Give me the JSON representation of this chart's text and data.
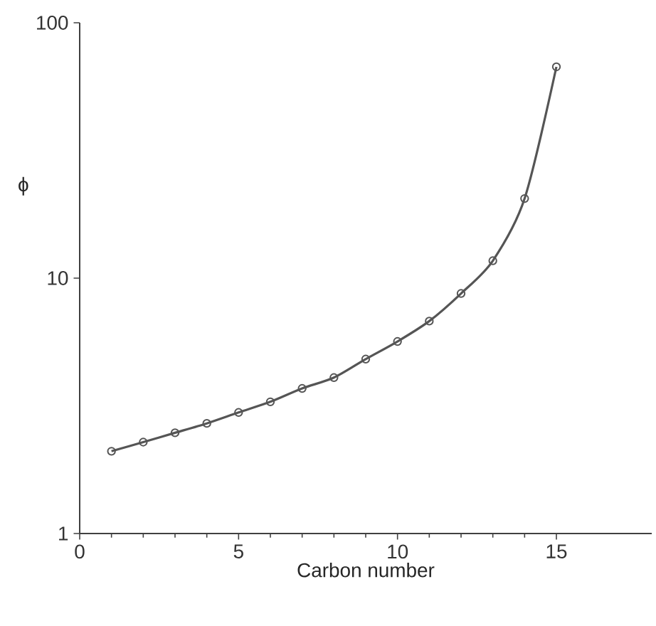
{
  "chart_data": {
    "type": "line",
    "xlabel": "Carbon number",
    "ylabel": "ϕ",
    "x": [
      1,
      2,
      3,
      4,
      5,
      6,
      7,
      8,
      9,
      10,
      11,
      12,
      13,
      14,
      15
    ],
    "series": [
      {
        "color": "#555555",
        "values": [
          2.1,
          2.28,
          2.48,
          2.7,
          2.98,
          3.28,
          3.7,
          4.08,
          4.82,
          5.65,
          6.79,
          8.71,
          11.7,
          20.5,
          67.2
        ]
      }
    ],
    "xlim": [
      0,
      18
    ],
    "ylim": [
      1,
      100
    ],
    "xticks": [
      0,
      5,
      10,
      15
    ],
    "yticks": [
      1,
      10,
      100
    ],
    "log": "y",
    "marker": "circle",
    "line_style": "solid"
  }
}
